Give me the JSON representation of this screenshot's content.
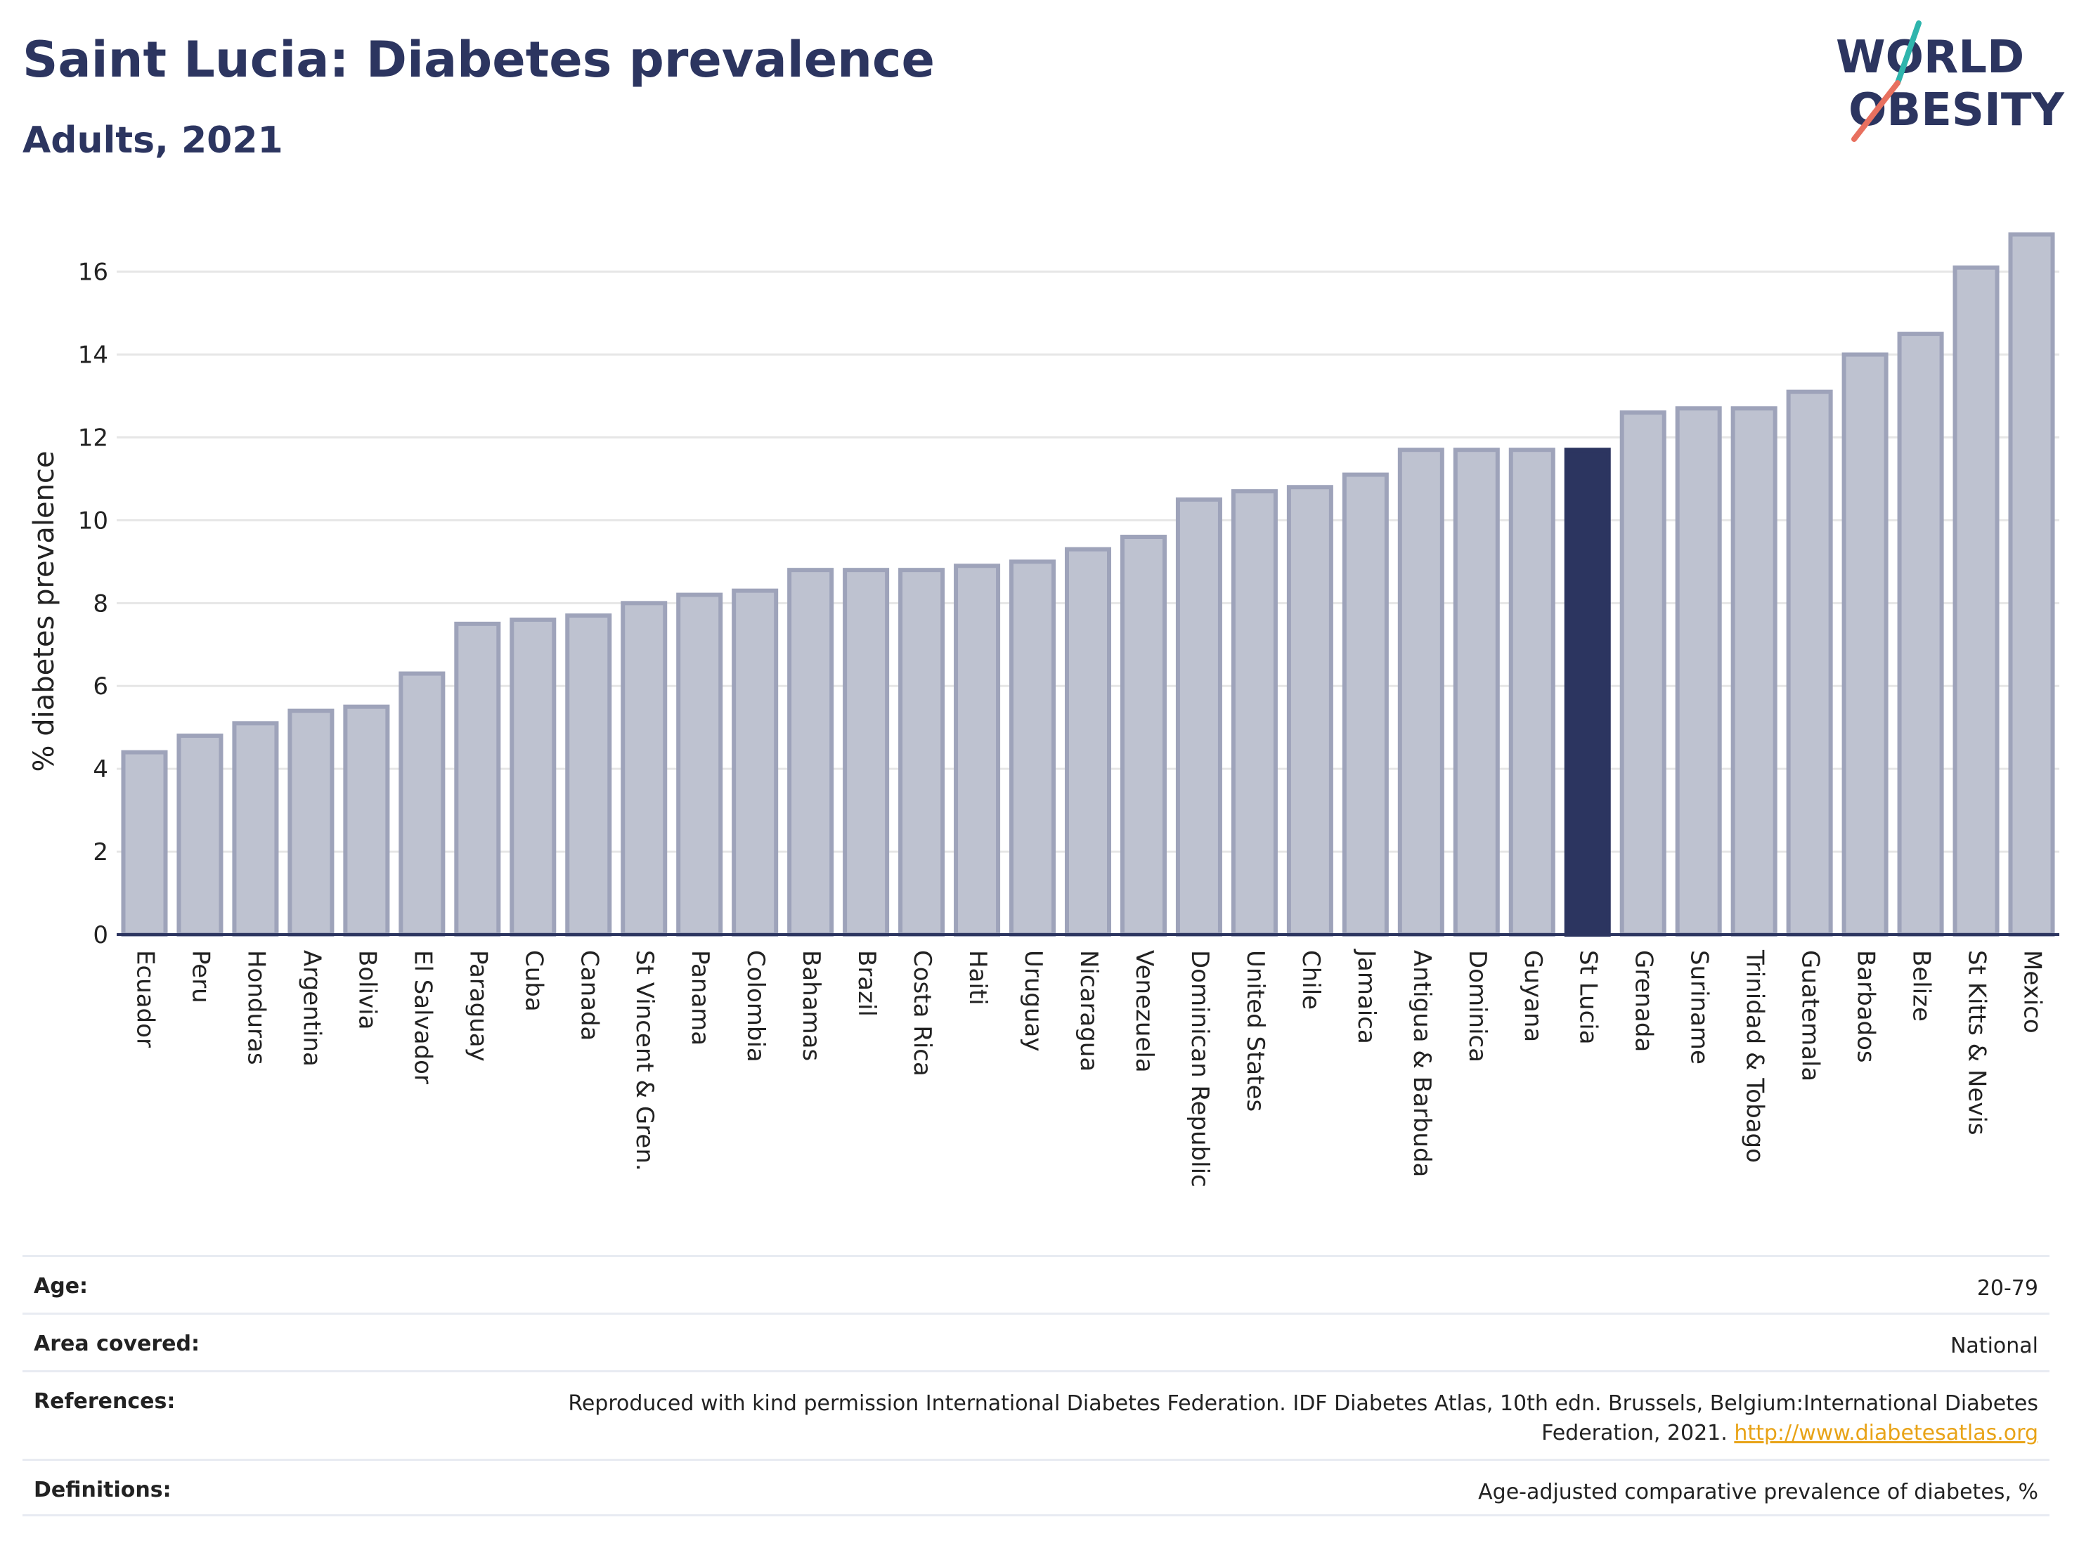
{
  "header": {
    "title": "Saint Lucia: Diabetes prevalence",
    "subtitle": "Adults, 2021"
  },
  "logo": {
    "line1": "WORLD",
    "line2": "OBESITY"
  },
  "colors": {
    "bar": "#bec2d0",
    "bar_border": "#9ea3ba",
    "highlight": "#2c3560",
    "axis": "#2c3560",
    "grid": "#e6e6e6",
    "title": "#2c3560"
  },
  "chart_data": {
    "type": "bar",
    "ylabel": "% diabetes prevalence",
    "xlabel": "",
    "ylim": [
      0,
      17.3
    ],
    "yticks": [
      0,
      2,
      4,
      6,
      8,
      10,
      12,
      14,
      16
    ],
    "grid": true,
    "highlight": "St Lucia",
    "categories": [
      "Ecuador",
      "Peru",
      "Honduras",
      "Argentina",
      "Bolivia",
      "El Salvador",
      "Paraguay",
      "Cuba",
      "Canada",
      "St Vincent & Gren.",
      "Panama",
      "Colombia",
      "Bahamas",
      "Brazil",
      "Costa Rica",
      "Haiti",
      "Uruguay",
      "Nicaragua",
      "Venezuela",
      "Dominican Republic",
      "United States",
      "Chile",
      "Jamaica",
      "Antigua & Barbuda",
      "Dominica",
      "Guyana",
      "St Lucia",
      "Grenada",
      "Suriname",
      "Trinidad & Tobago",
      "Guatemala",
      "Barbados",
      "Belize",
      "St Kitts & Nevis",
      "Mexico"
    ],
    "values": [
      4.4,
      4.8,
      5.1,
      5.4,
      5.5,
      6.3,
      7.5,
      7.6,
      7.7,
      8.0,
      8.2,
      8.3,
      8.8,
      8.8,
      8.8,
      8.9,
      9.0,
      9.3,
      9.6,
      10.5,
      10.7,
      10.8,
      11.1,
      11.7,
      11.7,
      11.7,
      11.7,
      12.6,
      12.7,
      12.7,
      13.1,
      14.0,
      14.5,
      16.1,
      16.9
    ]
  },
  "info": {
    "age_label": "Age:",
    "age_value": "20-79",
    "area_label": "Area covered:",
    "area_value": "National",
    "references_label": "References:",
    "references_value": "Reproduced with kind permission International Diabetes Federation.  IDF Diabetes Atlas, 10th edn. Brussels, Belgium:International Diabetes Federation, 2021.",
    "references_link": "http://www.diabetesatlas.org",
    "definitions_label": "Definitions:",
    "definitions_value": "Age-adjusted comparative prevalence of diabetes, %"
  }
}
